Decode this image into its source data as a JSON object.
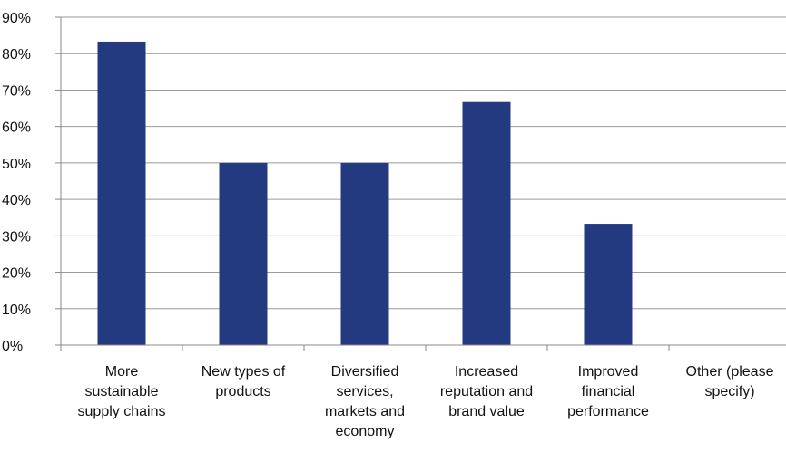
{
  "chart_data": {
    "type": "bar",
    "categories": [
      [
        "More",
        "sustainable",
        "supply chains"
      ],
      [
        "New types of",
        "products"
      ],
      [
        "Diversified",
        "services,",
        "markets and",
        "economy"
      ],
      [
        "Increased",
        "reputation and",
        "brand value"
      ],
      [
        "Improved",
        "financial",
        "performance"
      ],
      [
        "Other (please",
        "specify)"
      ]
    ],
    "values": [
      83.3,
      50,
      50,
      66.7,
      33.3,
      0
    ],
    "y_ticks": [
      "0%",
      "10%",
      "20%",
      "30%",
      "40%",
      "50%",
      "60%",
      "70%",
      "80%",
      "90%"
    ],
    "ylim": [
      0,
      90
    ],
    "grid": true,
    "legend": "none",
    "title": "",
    "xlabel": "",
    "ylabel": ""
  },
  "colors": {
    "bar": "#233a80",
    "grid": "#9a9a9a",
    "axis": "#888888"
  }
}
